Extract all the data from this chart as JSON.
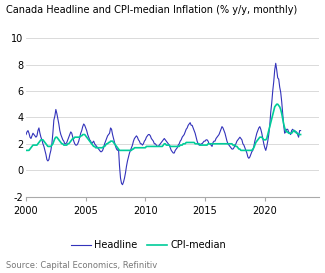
{
  "title": "Canada Headline and CPI-median Inflation (% y/y, monthly)",
  "source": "Source: Capital Economics, Refinitiv",
  "ylim": [
    -2,
    10
  ],
  "yticks": [
    -2,
    0,
    2,
    4,
    6,
    8,
    10
  ],
  "xlim_start": 2000.0,
  "xlim_end": 2024.5,
  "xticks": [
    2000,
    2005,
    2010,
    2015,
    2020
  ],
  "headline_color": "#3333bb",
  "cpi_median_color": "#00cc99",
  "legend_labels": [
    "Headline",
    "CPI-median"
  ],
  "headline_data": [
    2.7,
    2.9,
    3.0,
    2.8,
    2.5,
    2.4,
    2.6,
    2.8,
    2.7,
    2.6,
    2.5,
    2.6,
    3.0,
    3.2,
    2.8,
    2.5,
    2.3,
    2.0,
    1.8,
    1.5,
    1.2,
    0.8,
    0.7,
    0.8,
    1.2,
    1.5,
    2.0,
    2.8,
    3.8,
    4.1,
    4.6,
    4.3,
    3.9,
    3.5,
    3.0,
    2.7,
    2.5,
    2.3,
    2.2,
    2.0,
    2.0,
    2.1,
    2.3,
    2.5,
    2.7,
    2.9,
    2.8,
    2.5,
    2.2,
    2.0,
    1.9,
    1.9,
    2.0,
    2.2,
    2.5,
    2.8,
    3.0,
    3.3,
    3.5,
    3.4,
    3.2,
    3.0,
    2.7,
    2.5,
    2.3,
    2.2,
    2.0,
    2.1,
    2.2,
    2.0,
    1.9,
    1.8,
    1.7,
    1.6,
    1.5,
    1.4,
    1.4,
    1.5,
    1.7,
    2.0,
    2.2,
    2.4,
    2.6,
    2.7,
    2.8,
    3.2,
    3.1,
    2.7,
    2.4,
    2.1,
    1.8,
    1.6,
    1.5,
    1.6,
    0.3,
    -0.6,
    -1.0,
    -1.1,
    -0.9,
    -0.6,
    -0.2,
    0.3,
    0.7,
    1.0,
    1.3,
    1.5,
    1.7,
    1.9,
    2.2,
    2.4,
    2.5,
    2.6,
    2.5,
    2.3,
    2.2,
    2.0,
    2.0,
    1.9,
    2.0,
    2.2,
    2.3,
    2.5,
    2.6,
    2.7,
    2.7,
    2.6,
    2.4,
    2.3,
    2.2,
    2.0,
    2.0,
    1.9,
    1.8,
    1.8,
    1.9,
    2.0,
    2.1,
    2.2,
    2.3,
    2.4,
    2.3,
    2.2,
    2.1,
    2.0,
    1.9,
    1.7,
    1.5,
    1.4,
    1.3,
    1.3,
    1.5,
    1.6,
    1.7,
    1.9,
    2.0,
    2.2,
    2.3,
    2.5,
    2.6,
    2.7,
    2.9,
    3.1,
    3.2,
    3.4,
    3.5,
    3.6,
    3.4,
    3.4,
    3.2,
    3.0,
    2.8,
    2.5,
    2.2,
    2.0,
    1.9,
    1.9,
    2.0,
    2.0,
    2.1,
    2.2,
    2.2,
    2.3,
    2.3,
    2.2,
    2.0,
    2.0,
    1.9,
    1.8,
    2.1,
    2.2,
    2.2,
    2.4,
    2.5,
    2.6,
    2.7,
    2.9,
    3.1,
    3.3,
    3.2,
    3.0,
    2.8,
    2.5,
    2.2,
    2.0,
    1.9,
    1.8,
    1.7,
    1.6,
    1.6,
    1.7,
    1.9,
    2.0,
    2.2,
    2.3,
    2.4,
    2.5,
    2.4,
    2.3,
    2.0,
    1.9,
    1.7,
    1.5,
    1.3,
    1.0,
    0.9,
    1.0,
    1.2,
    1.4,
    1.5,
    1.8,
    2.2,
    2.5,
    2.8,
    3.0,
    3.2,
    3.3,
    3.1,
    2.8,
    2.4,
    2.0,
    1.7,
    1.5,
    1.8,
    2.2,
    2.7,
    3.4,
    4.4,
    5.1,
    6.0,
    6.7,
    7.6,
    8.1,
    7.6,
    7.0,
    6.9,
    6.3,
    5.9,
    5.2,
    4.3,
    3.4,
    2.8,
    2.9,
    3.1,
    3.1,
    2.9,
    2.8,
    2.7,
    3.0,
    3.1,
    3.0,
    2.9,
    2.9,
    2.9,
    2.7,
    2.5,
    3.0,
    3.0
  ],
  "cpi_median_data": [
    1.5,
    1.5,
    1.5,
    1.5,
    1.6,
    1.7,
    1.8,
    1.9,
    1.9,
    1.9,
    1.9,
    1.9,
    2.0,
    2.1,
    2.2,
    2.3,
    2.3,
    2.3,
    2.2,
    2.1,
    2.0,
    1.9,
    1.8,
    1.8,
    1.8,
    1.8,
    1.9,
    2.0,
    2.2,
    2.4,
    2.5,
    2.5,
    2.4,
    2.3,
    2.2,
    2.1,
    2.0,
    2.0,
    1.9,
    1.9,
    1.9,
    1.9,
    2.0,
    2.0,
    2.1,
    2.2,
    2.3,
    2.4,
    2.4,
    2.5,
    2.5,
    2.5,
    2.5,
    2.5,
    2.5,
    2.6,
    2.6,
    2.7,
    2.7,
    2.7,
    2.6,
    2.5,
    2.4,
    2.3,
    2.2,
    2.1,
    2.0,
    1.9,
    1.8,
    1.8,
    1.7,
    1.7,
    1.7,
    1.7,
    1.7,
    1.7,
    1.7,
    1.7,
    1.8,
    1.8,
    1.9,
    2.0,
    2.0,
    2.1,
    2.1,
    2.2,
    2.2,
    2.2,
    2.1,
    2.0,
    1.9,
    1.8,
    1.7,
    1.6,
    1.5,
    1.5,
    1.5,
    1.5,
    1.5,
    1.5,
    1.5,
    1.5,
    1.5,
    1.5,
    1.5,
    1.5,
    1.5,
    1.6,
    1.6,
    1.7,
    1.7,
    1.7,
    1.7,
    1.7,
    1.7,
    1.7,
    1.7,
    1.7,
    1.7,
    1.7,
    1.7,
    1.8,
    1.8,
    1.8,
    1.8,
    1.8,
    1.8,
    1.8,
    1.8,
    1.8,
    1.8,
    1.8,
    1.8,
    1.8,
    1.8,
    1.8,
    1.8,
    1.8,
    1.9,
    2.0,
    2.0,
    1.9,
    1.9,
    1.9,
    1.9,
    1.8,
    1.8,
    1.8,
    1.8,
    1.8,
    1.8,
    1.8,
    1.8,
    1.8,
    1.8,
    1.9,
    1.9,
    1.9,
    2.0,
    2.0,
    2.0,
    2.1,
    2.1,
    2.1,
    2.1,
    2.1,
    2.1,
    2.1,
    2.1,
    2.1,
    2.0,
    2.0,
    2.0,
    2.0,
    2.0,
    1.9,
    1.9,
    1.9,
    1.9,
    1.9,
    1.9,
    1.9,
    1.9,
    2.0,
    2.0,
    2.0,
    2.0,
    2.0,
    2.0,
    2.0,
    2.0,
    2.0,
    2.0,
    2.0,
    2.0,
    2.0,
    2.0,
    2.0,
    2.0,
    2.0,
    2.0,
    2.0,
    2.0,
    2.0,
    2.0,
    2.0,
    2.0,
    2.0,
    1.9,
    1.9,
    1.9,
    1.8,
    1.8,
    1.7,
    1.6,
    1.6,
    1.5,
    1.5,
    1.5,
    1.5,
    1.5,
    1.5,
    1.5,
    1.5,
    1.5,
    1.5,
    1.5,
    1.5,
    1.6,
    1.7,
    1.9,
    2.1,
    2.2,
    2.3,
    2.4,
    2.5,
    2.5,
    2.5,
    2.4,
    2.3,
    2.3,
    2.3,
    2.4,
    2.7,
    3.0,
    3.3,
    3.6,
    3.9,
    4.2,
    4.5,
    4.8,
    4.9,
    5.0,
    5.0,
    4.9,
    4.8,
    4.6,
    4.3,
    3.9,
    3.5,
    3.2,
    3.0,
    2.9,
    2.9,
    2.8,
    2.8,
    2.8,
    2.8,
    2.9,
    3.0,
    3.0,
    2.9,
    2.8,
    2.8,
    2.7,
    2.7,
    2.7
  ]
}
